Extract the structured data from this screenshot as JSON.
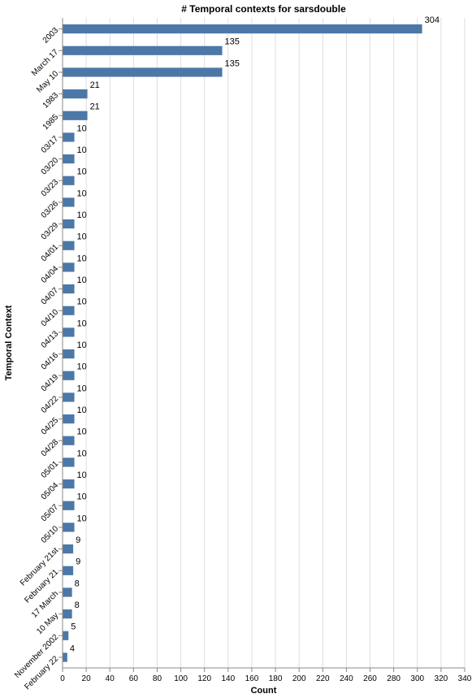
{
  "chart_data": {
    "type": "bar",
    "orientation": "horizontal",
    "title": "# Temporal contexts for sarsdouble",
    "xlabel": "Count",
    "ylabel": "Temporal Context",
    "xlim": [
      0,
      340
    ],
    "xticks": [
      0,
      20,
      40,
      60,
      80,
      100,
      120,
      140,
      160,
      180,
      200,
      220,
      240,
      260,
      280,
      300,
      320,
      340
    ],
    "grid": true,
    "legend": "none",
    "bar_color": "#4c78a8",
    "categories": [
      "2003",
      "March 17",
      "May 10",
      "1983",
      "1985",
      "03/17",
      "03/20",
      "03/23",
      "03/26",
      "03/29",
      "04/01",
      "04/04",
      "04/07",
      "04/10",
      "04/13",
      "04/16",
      "04/19",
      "04/22",
      "04/25",
      "04/28",
      "05/01",
      "05/04",
      "05/07",
      "05/10",
      "February 21st",
      "February 21",
      "17 March",
      "10 May",
      "November 2002",
      "February 22"
    ],
    "values": [
      304,
      135,
      135,
      21,
      21,
      10,
      10,
      10,
      10,
      10,
      10,
      10,
      10,
      10,
      10,
      10,
      10,
      10,
      10,
      10,
      10,
      10,
      10,
      10,
      9,
      9,
      8,
      8,
      5,
      4
    ]
  }
}
